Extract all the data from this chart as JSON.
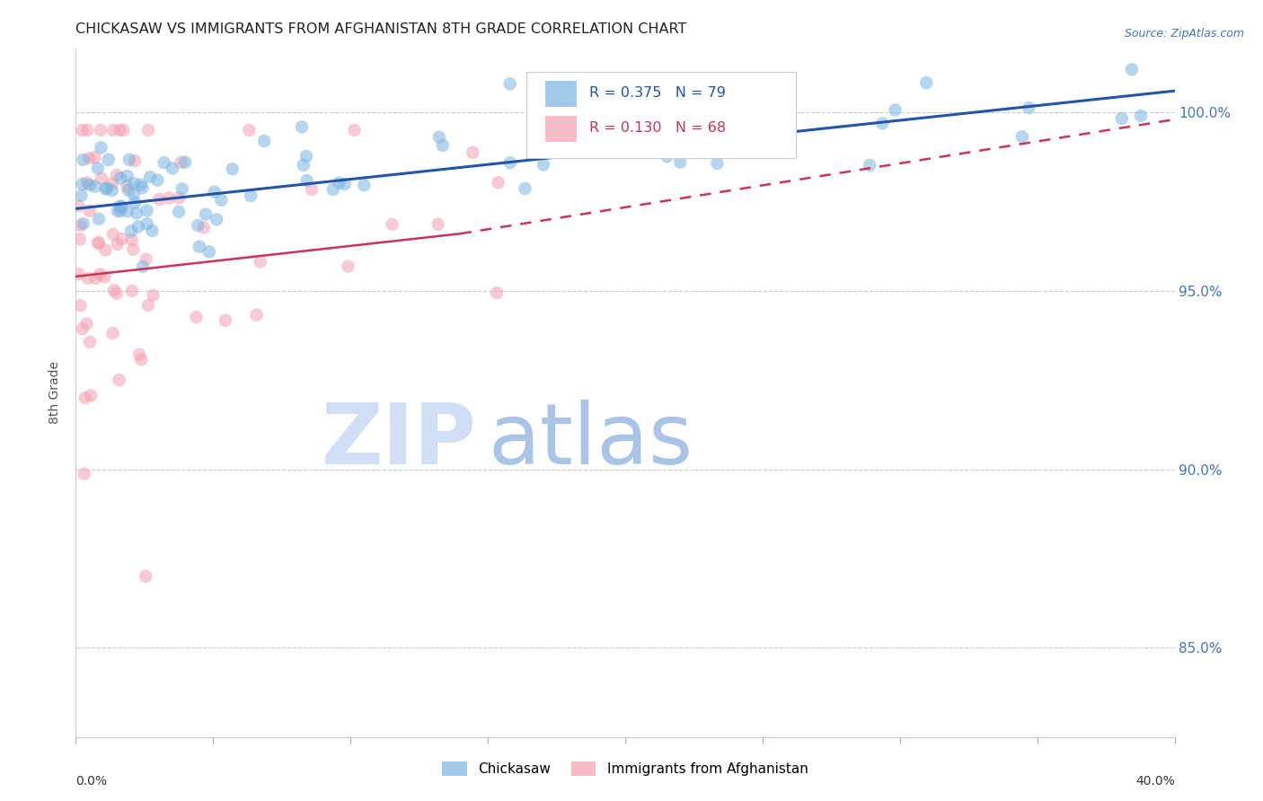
{
  "title": "CHICKASAW VS IMMIGRANTS FROM AFGHANISTAN 8TH GRADE CORRELATION CHART",
  "source": "Source: ZipAtlas.com",
  "ylabel": "8th Grade",
  "yticks": [
    85.0,
    90.0,
    95.0,
    100.0
  ],
  "ytick_labels": [
    "85.0%",
    "90.0%",
    "95.0%",
    "100.0%"
  ],
  "xlim": [
    0.0,
    40.0
  ],
  "ylim": [
    82.5,
    101.8
  ],
  "blue_line_x0": 0.0,
  "blue_line_y0": 97.3,
  "blue_line_x1": 40.0,
  "blue_line_y1": 100.6,
  "pink_line_x0": 0.0,
  "pink_line_y0": 95.4,
  "pink_line_x1": 14.0,
  "pink_line_y1": 96.6,
  "pink_dash_x0": 14.0,
  "pink_dash_y0": 96.6,
  "pink_dash_x1": 40.0,
  "pink_dash_y1": 99.8,
  "background_color": "#ffffff",
  "blue_color": "#7ab3e0",
  "pink_color": "#f4a0b0",
  "blue_line_color": "#2255aa",
  "pink_line_color": "#cc3355",
  "grid_color": "#cccccc",
  "right_axis_color": "#4472c4",
  "title_fontsize": 11.5,
  "source_fontsize": 9,
  "legend_R_blue": "R = 0.375",
  "legend_N_blue": "N = 79",
  "legend_R_pink": "R = 0.130",
  "legend_N_pink": "N = 68",
  "watermark_zip_color": "#d0dff5",
  "watermark_atlas_color": "#aac4e8"
}
